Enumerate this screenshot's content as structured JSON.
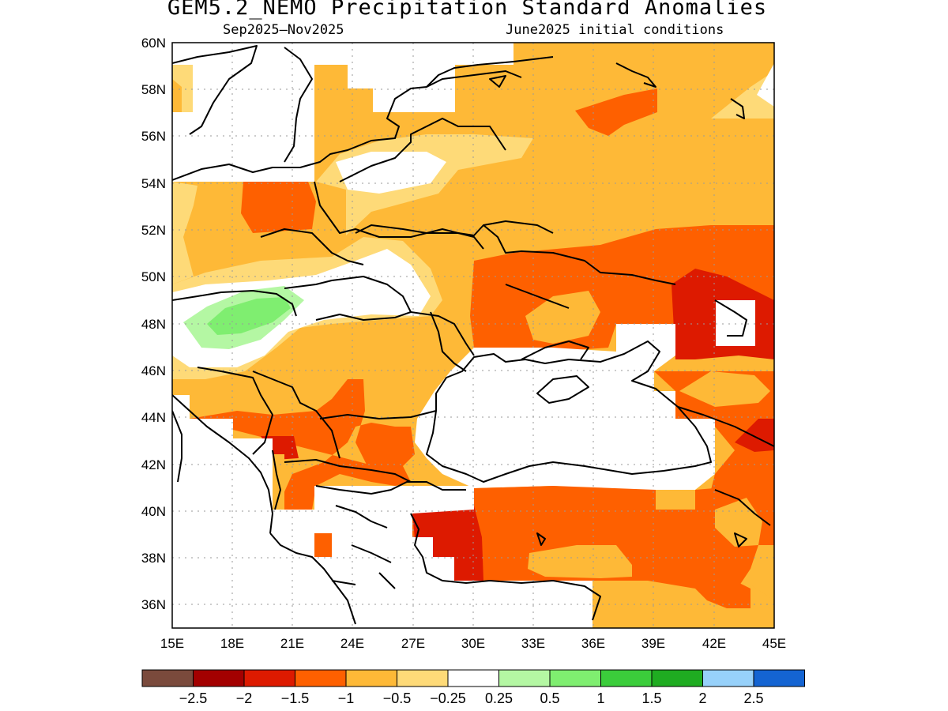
{
  "title": "GEM5.2_NEMO Precipitation Standard Anomalies",
  "period": "Sep2025–Nov2025",
  "init": "June2025 initial conditions",
  "map": {
    "lon_range": [
      15,
      45
    ],
    "lat_range": [
      35,
      60
    ],
    "lon_ticks": [
      "15E",
      "18E",
      "21E",
      "24E",
      "27E",
      "30E",
      "33E",
      "36E",
      "39E",
      "42E",
      "45E"
    ],
    "lat_ticks": [
      "60N",
      "58N",
      "56N",
      "54N",
      "52N",
      "50N",
      "48N",
      "46N",
      "44N",
      "42N",
      "40N",
      "38N",
      "36N"
    ],
    "gridlines": "dotted",
    "sea_masked": "Black Sea"
  },
  "legend": {
    "colors": [
      "#7a4a3c",
      "#a30000",
      "#dd1a00",
      "#fe6000",
      "#feb937",
      "#feda78",
      "#ffffff",
      "#b4f7a3",
      "#7fee70",
      "#3bcd3b",
      "#1fac21",
      "#97d1fa",
      "#1464d2"
    ],
    "labels": [
      "−2.5",
      "−2",
      "−1.5",
      "−1",
      "−0.5",
      "−0.25",
      "0.25",
      "0.5",
      "1",
      "1.5",
      "2",
      "2.5"
    ]
  },
  "regions": [
    {
      "name": "background",
      "color": "#feb937"
    },
    {
      "name": "northern-poland-belarus-white",
      "color": "#ffffff"
    },
    {
      "name": "belarus-light",
      "color": "#feda78"
    },
    {
      "name": "central-europe-white",
      "color": "#ffffff"
    },
    {
      "name": "hungary-green-light",
      "color": "#b4f7a3"
    },
    {
      "name": "hungary-green",
      "color": "#7fee70"
    },
    {
      "name": "ukraine-white",
      "color": "#ffffff"
    },
    {
      "name": "germany-poland-orange",
      "color": "#fe6000"
    },
    {
      "name": "russia-east-orange",
      "color": "#fe6000"
    },
    {
      "name": "russia-east-red",
      "color": "#dd1a00"
    },
    {
      "name": "moscow-orange",
      "color": "#fe6000"
    },
    {
      "name": "balkans-orange",
      "color": "#fe6000"
    },
    {
      "name": "balkans-red",
      "color": "#dd1a00"
    },
    {
      "name": "turkey-orange",
      "color": "#fe6000"
    },
    {
      "name": "turkey-red",
      "color": "#dd1a00"
    },
    {
      "name": "caucasus-red",
      "color": "#dd1a00"
    },
    {
      "name": "black-sea-white",
      "color": "#ffffff"
    },
    {
      "name": "aegean-white",
      "color": "#ffffff"
    },
    {
      "name": "adriatic-white",
      "color": "#ffffff"
    },
    {
      "name": "baltic-white",
      "color": "#ffffff"
    }
  ]
}
